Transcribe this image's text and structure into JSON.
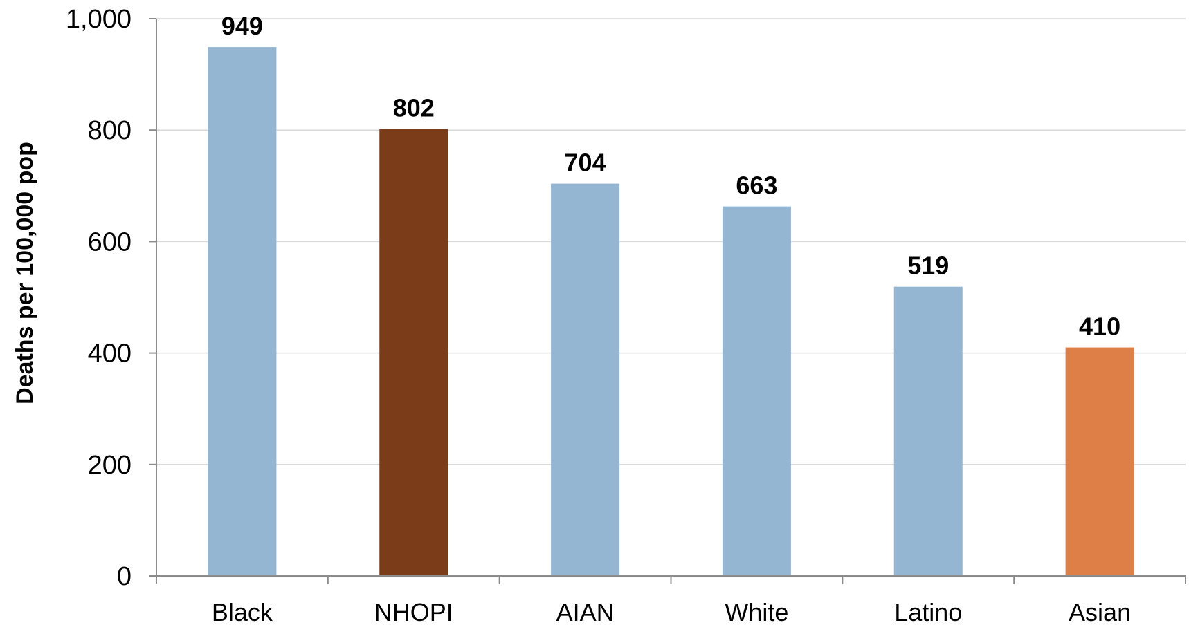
{
  "chart_data": {
    "type": "bar",
    "title": "",
    "xlabel": "",
    "ylabel": "Deaths per 100,000 pop",
    "categories": [
      "Black",
      "NHOPI",
      "AIAN",
      "White",
      "Latino",
      "Asian"
    ],
    "values": [
      949,
      802,
      704,
      663,
      519,
      410
    ],
    "data_labels": [
      "949",
      "802",
      "704",
      "663",
      "519",
      "410"
    ],
    "bar_colors": [
      "#95b6d3",
      "#7b3c1a",
      "#95b6d3",
      "#95b6d3",
      "#95b6d3",
      "#dd7f47"
    ],
    "ylim": [
      0,
      1000
    ],
    "yticks": [
      0,
      200,
      400,
      600,
      800,
      1000
    ],
    "ytick_labels": [
      "0",
      "200",
      "400",
      "600",
      "800",
      "1,000"
    ],
    "grid": true,
    "grid_color": "#d9d9d9",
    "axis_color": "#8c8c8c"
  }
}
